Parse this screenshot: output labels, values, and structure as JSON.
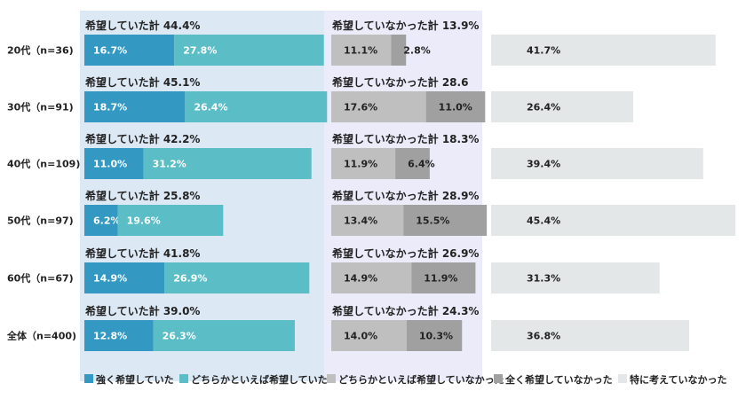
{
  "chart_data": {
    "type": "bar",
    "stacked": true,
    "orientation": "horizontal",
    "categories": [
      "20代（n=36)",
      "30代（n=91)",
      "40代（n=109)",
      "50代（n=97)",
      "60代（n=67)",
      "全体（n=400)"
    ],
    "series": [
      {
        "name": "強く希望していた",
        "values": [
          16.7,
          18.7,
          11.0,
          6.2,
          14.9,
          12.8
        ],
        "color": "#3399c3"
      },
      {
        "name": "どちらかといえば希望していた",
        "values": [
          27.8,
          26.4,
          31.2,
          19.6,
          26.9,
          26.3
        ],
        "color": "#5bbec7"
      },
      {
        "name": "どちらかといえば希望していなかった",
        "values": [
          11.1,
          17.6,
          11.9,
          13.4,
          14.9,
          14.0
        ],
        "color": "#bfbfbf"
      },
      {
        "name": "全く希望していなかった",
        "values": [
          2.8,
          11.0,
          6.4,
          15.5,
          11.9,
          10.3
        ],
        "color": "#a0a0a0"
      },
      {
        "name": "特に考えていなかった",
        "values": [
          41.7,
          26.4,
          39.4,
          45.4,
          31.3,
          36.8
        ],
        "color": "#e3e7e7"
      }
    ],
    "series_labels": [
      [
        "16.7%",
        "18.7%",
        "11.0%",
        "6.2%",
        "14.9%",
        "12.8%"
      ],
      [
        "27.8%",
        "26.4%",
        "31.2%",
        "19.6%",
        "26.9%",
        "26.3%"
      ],
      [
        "11.1%",
        "17.6%",
        "11.9%",
        "13.4%",
        "14.9%",
        "14.0%"
      ],
      [
        "2.8%",
        "11.0%",
        "6.4%",
        "15.5%",
        "11.9%",
        "10.3%"
      ],
      [
        "41.7%",
        "26.4%",
        "39.4%",
        "45.4%",
        "31.3%",
        "36.8%"
      ]
    ],
    "hoped_total_prefix": "希望していた計",
    "hoped_totals": [
      "44.4%",
      "45.1%",
      "42.2%",
      "25.8%",
      "41.8%",
      "39.0%"
    ],
    "not_hoped_total_prefix": "希望していなかった計",
    "not_hoped_totals": [
      "13.9%",
      "28.6",
      "18.3%",
      "28.9%",
      "26.9%",
      "24.3%"
    ],
    "panel_colors": {
      "hoped": "#dce9f5",
      "not_hoped": "#ecebfa"
    },
    "legend_position": "bottom"
  }
}
